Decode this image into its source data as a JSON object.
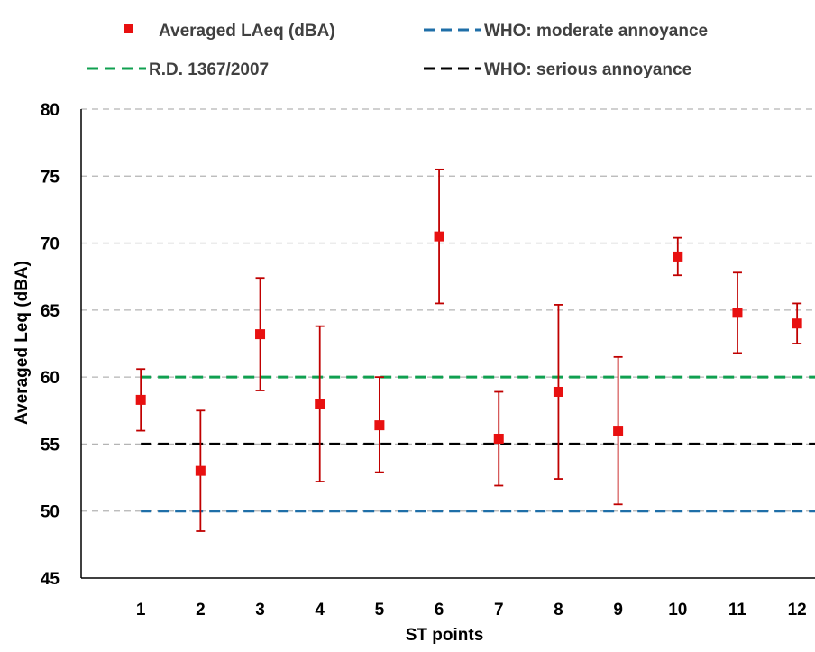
{
  "chart_data": {
    "type": "scatter",
    "xlabel": "ST points",
    "ylabel": "Averaged Leq (dBA)",
    "ylim": [
      45,
      80
    ],
    "yticks": [
      45,
      50,
      55,
      60,
      65,
      70,
      75,
      80
    ],
    "xlim": [
      0,
      12.3
    ],
    "grid": true,
    "legend_position": "top",
    "categories": [
      "1",
      "2",
      "3",
      "4",
      "5",
      "6",
      "7",
      "8",
      "9",
      "10",
      "11",
      "12"
    ],
    "series": [
      {
        "name": "Averaged LAeq (dBA)",
        "color": "#e81010",
        "errorbar_color": "#c00000",
        "x": [
          1,
          2,
          3,
          4,
          5,
          6,
          7,
          8,
          9,
          10,
          11,
          12
        ],
        "y": [
          58.3,
          53.0,
          63.2,
          58.0,
          56.4,
          70.5,
          55.4,
          58.9,
          56.0,
          69.0,
          64.8,
          64.0
        ],
        "y_low": [
          56.0,
          48.5,
          59.0,
          52.2,
          52.9,
          65.5,
          51.9,
          52.4,
          50.5,
          67.6,
          61.8,
          62.5
        ],
        "y_high": [
          60.6,
          57.5,
          67.4,
          63.8,
          60.0,
          75.5,
          58.9,
          65.4,
          61.5,
          70.4,
          67.8,
          65.5
        ]
      }
    ],
    "reference_lines": [
      {
        "name": "WHO: moderate annoyance",
        "y": 50,
        "x_start": 1,
        "color": "#1f6fa8"
      },
      {
        "name": "R.D. 1367/2007",
        "y": 60,
        "x_start": 1,
        "color": "#10a050"
      },
      {
        "name": "WHO: serious annoyance",
        "y": 55,
        "x_start": 1,
        "color": "#000000"
      }
    ]
  }
}
